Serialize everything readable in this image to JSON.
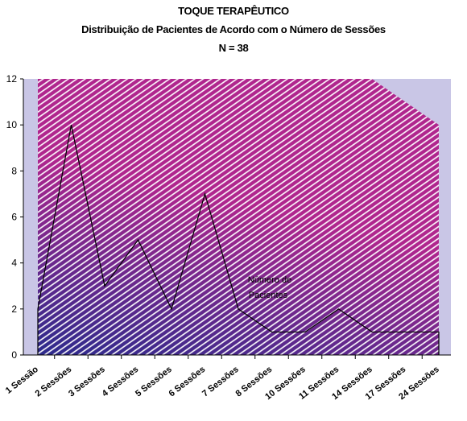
{
  "chart_data": {
    "type": "area",
    "title": "TOQUE TERAPÊUTICO",
    "subtitle": "Distribuição de Pacientes de Acordo com o Número de Sessões",
    "n_label": "N = 38",
    "categories": [
      "1 Sessão",
      "2 Sessões",
      "3 Sessões",
      "4 Sessões",
      "5 Sessões",
      "6 Sessões",
      "7 Sessões",
      "8 Sessões",
      "10 Sessões",
      "11 Sessões",
      "14 Sessões",
      "17 Sessões",
      "24 Sessões"
    ],
    "series": [
      {
        "name": "Número de Pacientes",
        "values": [
          2,
          10,
          3,
          5,
          2,
          7,
          2,
          1,
          1,
          2,
          1,
          1,
          1
        ]
      }
    ],
    "background_band": [
      12,
      12,
      12,
      12,
      12,
      12,
      12,
      12,
      12,
      12,
      12,
      11,
      10
    ],
    "annotation": [
      "Número de",
      "Pacientes"
    ],
    "ylim": [
      0,
      12
    ],
    "yticks": [
      0,
      2,
      4,
      6,
      8,
      10,
      12
    ],
    "grid": false,
    "colors": {
      "plot_background": "#c9c6e6",
      "upper_fill": "#b0268e",
      "lower_fill": "#2c2a8c",
      "hatch": "#ffffff",
      "line": "#000000"
    }
  }
}
